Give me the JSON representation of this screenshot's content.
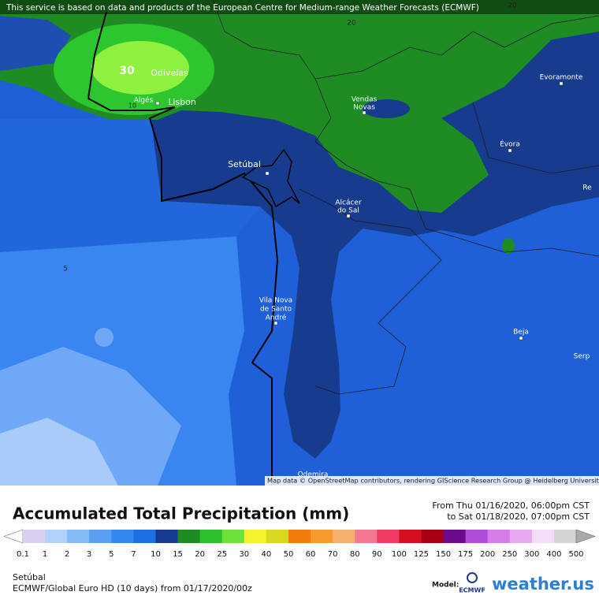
{
  "header": {
    "notice": "This service is based on data and products of the European Centre for Medium-range Weather Forecasts (ECMWF)"
  },
  "map": {
    "places": [
      "Odivelas",
      "Lisbon",
      "Algés",
      [
        "Vendas",
        "Novas"
      ],
      "Evoramonte",
      "Évora",
      "Setúbal",
      [
        "Alcácer",
        "do Sal"
      ],
      [
        "Vila Nova",
        "de Santo",
        "André"
      ],
      "Beja",
      "Odemira",
      "Re",
      "Serp"
    ],
    "contour_labels": [
      30,
      20,
      20,
      10,
      5
    ],
    "attribution": "Map data © OpenStreetMap contributors, rendering GIScience Research Group @ Heidelberg University"
  },
  "legend": {
    "title": "Accumulated Total Precipitation (mm)",
    "period": [
      "From Thu 01/16/2020, 06:00pm CST",
      "to Sat 01/18/2020, 07:00pm CST"
    ],
    "scale": [
      {
        "value": 0.1,
        "color": "#d8d0ee"
      },
      {
        "value": 1,
        "color": "#b0d2fa"
      },
      {
        "value": 2,
        "color": "#84baf6"
      },
      {
        "value": 3,
        "color": "#5a9ff2"
      },
      {
        "value": 5,
        "color": "#3387ee"
      },
      {
        "value": 7,
        "color": "#1e6fe4"
      },
      {
        "value": 10,
        "color": "#173c8e"
      },
      {
        "value": 15,
        "color": "#1e8c22"
      },
      {
        "value": 20,
        "color": "#2cc02c"
      },
      {
        "value": 25,
        "color": "#6ee23a"
      },
      {
        "value": 30,
        "color": "#f4f42c"
      },
      {
        "value": 40,
        "color": "#d8d820"
      },
      {
        "value": 50,
        "color": "#f07c0c"
      },
      {
        "value": 60,
        "color": "#f79a2c"
      },
      {
        "value": 70,
        "color": "#f8b070"
      },
      {
        "value": 80,
        "color": "#f57890"
      },
      {
        "value": 90,
        "color": "#f03c64"
      },
      {
        "value": 100,
        "color": "#d40f1f"
      },
      {
        "value": 125,
        "color": "#a80010"
      },
      {
        "value": 150,
        "color": "#6e0a8c"
      },
      {
        "value": 175,
        "color": "#b04cd8"
      },
      {
        "value": 200,
        "color": "#d67ce8"
      },
      {
        "value": 250,
        "color": "#e6a8f0"
      },
      {
        "value": 300,
        "color": "#f4ddf8"
      },
      {
        "value": 400,
        "color": "#d4d4d4"
      },
      {
        "value": 500,
        "color": "#a9a9a9"
      }
    ]
  },
  "footer": {
    "location": "Setúbal",
    "model": "ECMWF/Global Euro HD (10 days) from 01/17/2020/00z",
    "model_label": "Model:",
    "model_logo": "ECMWF",
    "brand": "weather.us"
  }
}
